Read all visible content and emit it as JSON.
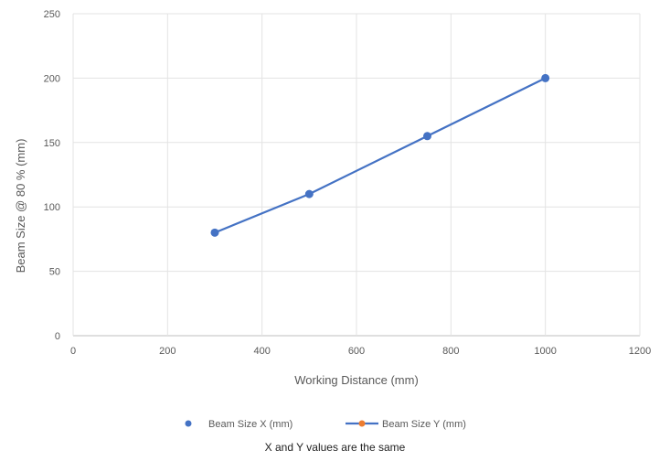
{
  "chart_data": {
    "type": "scatter",
    "title": "",
    "xlabel": "Working Distance (mm)",
    "ylabel": "Beam Size @ 80 % (mm)",
    "xlim": [
      0,
      1200
    ],
    "ylim": [
      0,
      250
    ],
    "xticks": [
      0,
      200,
      400,
      600,
      800,
      1000,
      1200
    ],
    "yticks": [
      0,
      50,
      100,
      150,
      200,
      250
    ],
    "grid": true,
    "legend_position": "bottom",
    "series": [
      {
        "name": "Beam Size X (mm)",
        "style": "markers",
        "color": "#4472C4",
        "x": [
          300,
          500,
          750,
          1000
        ],
        "y": [
          80,
          110,
          155,
          200
        ]
      },
      {
        "name": "Beam Size Y (mm)",
        "style": "line",
        "color": "#4472C4",
        "marker_color": "#ED7D31",
        "x": [
          300,
          500,
          750,
          1000
        ],
        "y": [
          80,
          110,
          155,
          200
        ]
      }
    ]
  },
  "caption": "X and Y values are the same"
}
